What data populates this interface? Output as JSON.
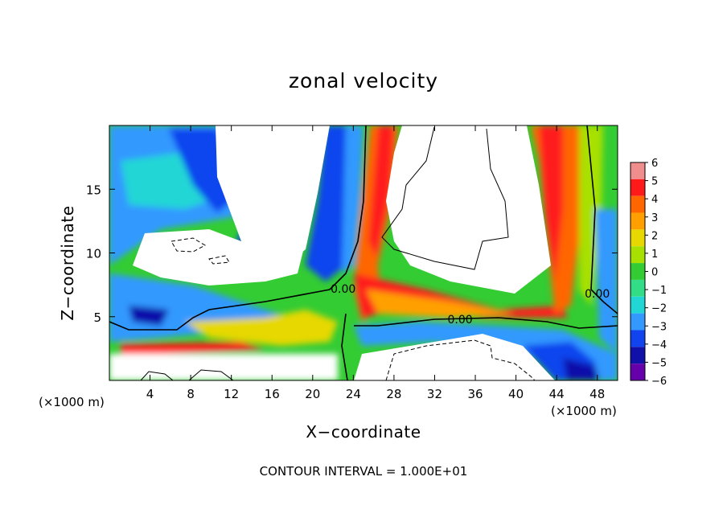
{
  "chart_data": {
    "type": "heatmap",
    "title": "zonal velocity",
    "xlabel": "X−coordinate",
    "ylabel": "Z−coordinate",
    "x_unit": "(×1000 m)",
    "y_unit": "(×1000 m)",
    "footer": "CONTOUR INTERVAL = 1.000E+01",
    "xlim": [
      0,
      50
    ],
    "ylim": [
      0,
      20
    ],
    "x_ticks": [
      4,
      8,
      12,
      16,
      20,
      24,
      28,
      32,
      36,
      40,
      44,
      48
    ],
    "y_ticks": [
      5,
      10,
      15
    ],
    "colorbar": {
      "levels": [
        6,
        5,
        4,
        3,
        2,
        1,
        0,
        -1,
        -2,
        -3,
        -4,
        -5,
        -6
      ],
      "colors": [
        "#f08d8d",
        "#ff1a1a",
        "#ff6600",
        "#ffa000",
        "#e6d800",
        "#a8e000",
        "#33cc33",
        "#33dd88",
        "#22d6d6",
        "#3399ff",
        "#1144ee",
        "#1111aa",
        "#6600aa"
      ]
    },
    "contour_labels": [
      {
        "text": "0.00",
        "x": 23,
        "y": 7.2
      },
      {
        "text": "0.00",
        "x": 34.5,
        "y": 4.8
      },
      {
        "text": "0.00",
        "x": 48,
        "y": 6.8
      }
    ]
  }
}
